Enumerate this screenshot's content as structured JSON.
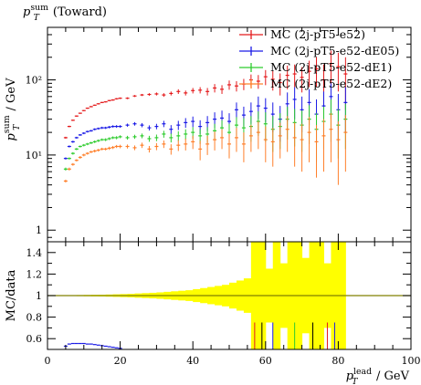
{
  "chart_data": {
    "type": "scatter",
    "title": "p_T^sum (Toward)",
    "title_parts": {
      "main": "p",
      "sub": "T",
      "sup": "sum",
      "rest": " (Toward)"
    },
    "ylabel_parts": {
      "main": "p",
      "sub": "T",
      "sup": "sum",
      "rest": " / GeV"
    },
    "xlabel_parts": {
      "main": "p",
      "sub": "T",
      "sup": "lead",
      "rest": " / GeV"
    },
    "ratio_ylabel": "MC/data",
    "xlim": [
      0,
      100
    ],
    "ylim_main": [
      0.7,
      500
    ],
    "yscale_main": "log",
    "ylim_ratio": [
      0.5,
      1.5
    ],
    "x_ticks": [
      0,
      20,
      40,
      60,
      80,
      100
    ],
    "x_tick_labels": [
      "0",
      "20",
      "40",
      "60",
      "80",
      "100"
    ],
    "y_ticks_main": [
      1,
      10,
      100
    ],
    "y_tick_labels_main": [
      "1",
      "10¹",
      "10²"
    ],
    "y_ticks_ratio": [
      0.6,
      0.8,
      1,
      1.2,
      1.4
    ],
    "y_tick_labels_ratio": [
      "0.6",
      "0.8",
      "1",
      "1.2",
      "1.4"
    ],
    "legend_position": "top-right",
    "series": [
      {
        "name": "MC (2j-pT5-e52)",
        "color": "#e41a1c",
        "x": [
          5,
          6,
          7,
          8,
          9,
          10,
          11,
          12,
          13,
          14,
          15,
          16,
          17,
          18,
          19,
          20,
          22,
          24,
          26,
          28,
          30,
          32,
          34,
          36,
          38,
          40,
          42,
          44,
          46,
          48,
          50,
          52,
          54,
          56,
          58,
          60,
          62,
          64,
          66,
          68,
          70,
          72,
          74,
          76,
          78,
          80,
          82
        ],
        "y": [
          17,
          24,
          29,
          33,
          36,
          39,
          42,
          44,
          46,
          48,
          50,
          51,
          53,
          54,
          56,
          57,
          57,
          61,
          63,
          64,
          65,
          63,
          66,
          70,
          67,
          72,
          73,
          70,
          78,
          75,
          86,
          83,
          88,
          100,
          96,
          110,
          102,
          92,
          115,
          120,
          108,
          130,
          140,
          100,
          165,
          150,
          120
        ],
        "yerr": [
          0.5,
          0.6,
          0.6,
          0.7,
          0.7,
          0.8,
          0.8,
          0.9,
          0.9,
          1,
          1,
          1,
          1.1,
          1.2,
          1.3,
          1.4,
          1.6,
          1.8,
          2,
          2.5,
          3,
          3.5,
          4,
          5,
          5,
          6,
          7,
          8,
          10,
          10,
          12,
          13,
          15,
          18,
          20,
          25,
          30,
          30,
          40,
          40,
          40,
          50,
          60,
          60,
          80,
          80,
          80
        ]
      },
      {
        "name": "MC (2j-pT5-e52-dE05)",
        "color": "#1a1ae6",
        "x": [
          5,
          6,
          7,
          8,
          9,
          10,
          11,
          12,
          13,
          14,
          15,
          16,
          17,
          18,
          19,
          20,
          22,
          24,
          26,
          28,
          30,
          32,
          34,
          36,
          38,
          40,
          42,
          44,
          46,
          48,
          50,
          52,
          54,
          56,
          58,
          60,
          62,
          64,
          66,
          68,
          70,
          72,
          74,
          76,
          78,
          80,
          82
        ],
        "y": [
          9,
          13,
          15,
          17,
          18.5,
          19.5,
          20.5,
          21,
          22,
          22.5,
          23,
          23,
          23.5,
          24,
          24,
          24,
          25,
          26,
          25,
          23,
          24,
          26,
          22,
          25,
          27,
          28,
          24,
          27,
          30,
          31,
          28,
          40,
          34,
          38,
          45,
          42,
          35,
          30,
          48,
          55,
          40,
          50,
          35,
          45,
          60,
          40,
          50
        ],
        "yerr": [
          0.3,
          0.4,
          0.5,
          0.5,
          0.5,
          0.6,
          0.6,
          0.6,
          0.7,
          0.7,
          0.8,
          0.8,
          0.9,
          0.9,
          1,
          1,
          1.2,
          1.4,
          1.6,
          1.8,
          2,
          2.5,
          3,
          3.5,
          4,
          4.5,
          5,
          6,
          7,
          8,
          8,
          10,
          10,
          12,
          15,
          15,
          15,
          15,
          20,
          25,
          20,
          25,
          20,
          25,
          30,
          25,
          30
        ]
      },
      {
        "name": "MC (2j-pT5-e52-dE1)",
        "color": "#2ecc2e",
        "x": [
          5,
          6,
          7,
          8,
          9,
          10,
          11,
          12,
          13,
          14,
          15,
          16,
          17,
          18,
          19,
          20,
          22,
          24,
          26,
          28,
          30,
          32,
          34,
          36,
          38,
          40,
          42,
          44,
          46,
          48,
          50,
          52,
          54,
          56,
          58,
          60,
          62,
          64,
          66,
          68,
          70,
          72,
          74,
          76,
          78,
          80,
          82
        ],
        "y": [
          6.5,
          9,
          10.5,
          12,
          13,
          13.5,
          14,
          14.5,
          15,
          15.5,
          16,
          16,
          16.5,
          17,
          17,
          17.5,
          17,
          17.5,
          18,
          16.5,
          17,
          19,
          17,
          18,
          19,
          20,
          18,
          19,
          21,
          23,
          20,
          25,
          23,
          24,
          28,
          26,
          22,
          24,
          30,
          27,
          25,
          30,
          22,
          28,
          35,
          25,
          30
        ],
        "yerr": [
          0.3,
          0.3,
          0.4,
          0.4,
          0.4,
          0.5,
          0.5,
          0.5,
          0.6,
          0.6,
          0.6,
          0.7,
          0.7,
          0.7,
          0.8,
          0.8,
          1,
          1.1,
          1.3,
          1.5,
          1.7,
          2,
          2.3,
          2.7,
          3,
          3.5,
          4,
          4.5,
          5,
          6,
          6,
          7,
          8,
          9,
          10,
          11,
          11,
          12,
          14,
          14,
          14,
          16,
          14,
          16,
          20,
          16,
          18
        ]
      },
      {
        "name": "MC (2j-pT5-e52-dE2)",
        "color": "#ff7f2a",
        "x": [
          5,
          6,
          7,
          8,
          9,
          10,
          11,
          12,
          13,
          14,
          15,
          16,
          17,
          18,
          19,
          20,
          22,
          24,
          26,
          28,
          30,
          32,
          34,
          36,
          38,
          40,
          42,
          44,
          46,
          48,
          50,
          52,
          54,
          56,
          58,
          60,
          62,
          64,
          66,
          68,
          70,
          72,
          74,
          76,
          78,
          80,
          82
        ],
        "y": [
          4.5,
          6.5,
          7.5,
          8.5,
          9.3,
          10,
          10.5,
          11,
          11.3,
          11.6,
          12,
          12,
          12.3,
          12.6,
          13,
          13,
          13,
          12.5,
          13.5,
          12,
          13,
          14,
          12,
          13.5,
          14,
          15,
          12,
          14,
          16,
          17,
          14,
          17,
          14,
          18,
          20,
          16,
          15,
          18,
          22,
          17,
          16,
          20,
          15,
          18,
          22,
          16,
          20
        ],
        "yerr": [
          0.2,
          0.3,
          0.3,
          0.3,
          0.4,
          0.4,
          0.4,
          0.4,
          0.5,
          0.5,
          0.5,
          0.5,
          0.6,
          0.6,
          0.6,
          0.7,
          0.8,
          0.9,
          1.1,
          1.2,
          1.4,
          1.6,
          1.9,
          2.2,
          2.5,
          3,
          3.5,
          4,
          4.5,
          5,
          5,
          6,
          6,
          7,
          8,
          8,
          8,
          9,
          11,
          10,
          10,
          12,
          10,
          12,
          14,
          12,
          14
        ]
      }
    ],
    "ratio": {
      "reference_value": 1.0,
      "band_color": "#ffff00",
      "reference_line_color": "#808000",
      "band_x": [
        5,
        7,
        9,
        11,
        13,
        15,
        17,
        19,
        21,
        23,
        25,
        27,
        29,
        31,
        33,
        35,
        37,
        39,
        41,
        43,
        45,
        47,
        49,
        51,
        53,
        55,
        57,
        59,
        61,
        63,
        65,
        67,
        69,
        71,
        73,
        75,
        77,
        79,
        81
      ],
      "band_halfwidth": [
        0.003,
        0.004,
        0.005,
        0.006,
        0.007,
        0.008,
        0.01,
        0.012,
        0.014,
        0.016,
        0.02,
        0.023,
        0.026,
        0.03,
        0.035,
        0.04,
        0.045,
        0.05,
        0.06,
        0.07,
        0.08,
        0.09,
        0.1,
        0.12,
        0.14,
        0.16,
        0.5,
        0.5,
        0.25,
        0.5,
        0.3,
        0.5,
        0.5,
        0.35,
        0.5,
        0.5,
        0.3,
        0.5,
        0.5
      ],
      "blue_x": [
        5,
        6,
        7,
        8,
        9,
        10,
        11,
        12,
        13,
        14,
        15,
        16,
        17,
        18,
        19,
        20
      ],
      "blue_y": [
        0.53,
        0.55,
        0.555,
        0.555,
        0.555,
        0.555,
        0.55,
        0.55,
        0.545,
        0.54,
        0.535,
        0.53,
        0.525,
        0.52,
        0.515,
        0.51
      ]
    }
  }
}
